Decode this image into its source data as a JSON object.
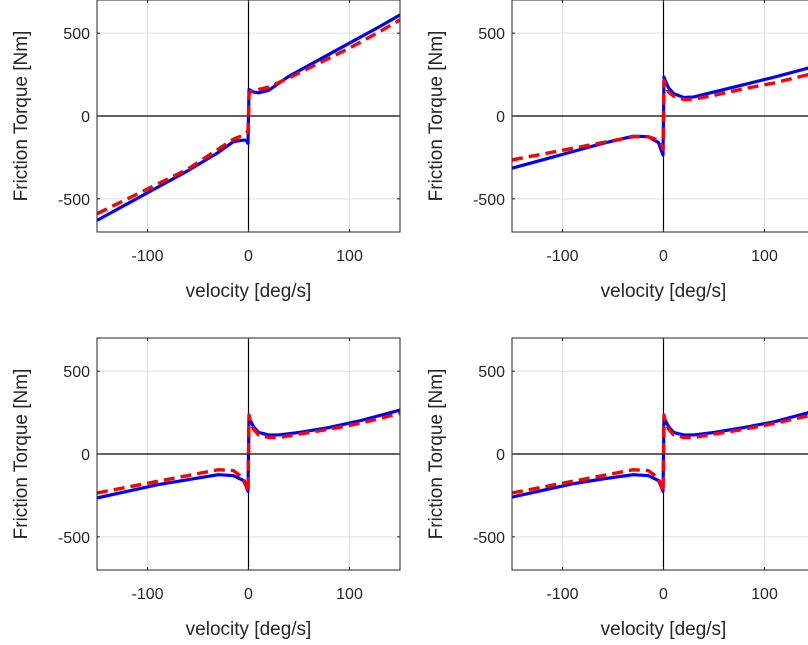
{
  "chart_data": [
    {
      "type": "line",
      "xlabel": "velocity [deg/s]",
      "ylabel": "Friction Torque [Nm]",
      "xlim": [
        -150,
        150
      ],
      "ylim": [
        -700,
        700
      ],
      "xticks": [
        -100,
        0,
        100
      ],
      "yticks": [
        -500,
        0,
        500
      ],
      "grid": true,
      "colors": {
        "blue": "#0000ff",
        "red": "#ff0000"
      },
      "series": [
        {
          "color": "blue",
          "style": "solid",
          "x": [
            -150,
            -120,
            -90,
            -60,
            -30,
            -15,
            -5,
            -2,
            -0.5,
            0,
            0.5,
            2,
            5,
            10,
            20,
            40,
            70,
            100,
            130,
            150
          ],
          "y": [
            -630,
            -530,
            -430,
            -330,
            -220,
            -155,
            -145,
            -148,
            -165,
            0,
            160,
            155,
            145,
            140,
            155,
            240,
            340,
            440,
            540,
            610
          ]
        },
        {
          "color": "red",
          "style": "dashed",
          "x": [
            -150,
            -120,
            -90,
            -60,
            -30,
            -15,
            -5,
            -2,
            -0.5,
            0,
            0.5,
            2,
            5,
            10,
            20,
            40,
            70,
            100,
            130,
            150
          ],
          "y": [
            -590,
            -500,
            -410,
            -320,
            -200,
            -140,
            -115,
            -100,
            -90,
            0,
            130,
            150,
            150,
            160,
            175,
            230,
            320,
            410,
            510,
            580
          ]
        }
      ]
    },
    {
      "type": "line",
      "xlabel": "velocity [deg/s]",
      "ylabel": "Friction Torque [Nm]",
      "xlim": [
        -150,
        150
      ],
      "ylim": [
        -700,
        700
      ],
      "xticks": [
        -100,
        0,
        100
      ],
      "yticks": [
        -500,
        0,
        500
      ],
      "grid": true,
      "series": [
        {
          "color": "blue",
          "style": "solid",
          "x": [
            -150,
            -120,
            -90,
            -60,
            -30,
            -15,
            -5,
            -2,
            -0.5,
            0,
            0.5,
            2,
            5,
            10,
            20,
            30,
            50,
            80,
            110,
            150
          ],
          "y": [
            -315,
            -265,
            -215,
            -165,
            -122,
            -125,
            -160,
            -210,
            -235,
            0,
            235,
            210,
            170,
            135,
            112,
            115,
            145,
            190,
            235,
            300
          ]
        },
        {
          "color": "red",
          "style": "dashed",
          "x": [
            -150,
            -120,
            -90,
            -60,
            -30,
            -15,
            -5,
            -2,
            -0.5,
            0,
            0.5,
            2,
            5,
            10,
            20,
            30,
            50,
            80,
            110,
            150
          ],
          "y": [
            -265,
            -230,
            -195,
            -160,
            -125,
            -125,
            -145,
            -175,
            -200,
            0,
            215,
            180,
            145,
            120,
            100,
            102,
            125,
            165,
            200,
            260
          ]
        }
      ]
    },
    {
      "type": "line",
      "xlabel": "velocity [deg/s]",
      "ylabel": "Friction Torque [Nm]",
      "xlim": [
        -150,
        150
      ],
      "ylim": [
        -700,
        700
      ],
      "xticks": [
        -100,
        0,
        100
      ],
      "yticks": [
        -500,
        0,
        500
      ],
      "grid": true,
      "series": [
        {
          "color": "blue",
          "style": "solid",
          "x": [
            -150,
            -120,
            -90,
            -60,
            -30,
            -15,
            -5,
            -2,
            -0.5,
            0,
            0.5,
            2,
            5,
            10,
            20,
            30,
            50,
            80,
            110,
            150
          ],
          "y": [
            -265,
            -225,
            -185,
            -155,
            -125,
            -130,
            -160,
            -200,
            -225,
            0,
            225,
            200,
            165,
            130,
            115,
            115,
            130,
            160,
            200,
            265
          ]
        },
        {
          "color": "red",
          "style": "dashed",
          "x": [
            -150,
            -120,
            -90,
            -60,
            -30,
            -15,
            -5,
            -2,
            -0.5,
            0,
            0.5,
            2,
            5,
            10,
            20,
            30,
            50,
            80,
            110,
            150
          ],
          "y": [
            -235,
            -200,
            -165,
            -130,
            -95,
            -100,
            -145,
            -200,
            -230,
            0,
            235,
            190,
            150,
            115,
            100,
            100,
            120,
            150,
            185,
            245
          ]
        }
      ]
    },
    {
      "type": "line",
      "xlabel": "velocity [deg/s]",
      "ylabel": "Friction Torque [Nm]",
      "xlim": [
        -150,
        150
      ],
      "ylim": [
        -700,
        700
      ],
      "xticks": [
        -100,
        0,
        100
      ],
      "yticks": [
        -500,
        0,
        500
      ],
      "grid": true,
      "series": [
        {
          "color": "blue",
          "style": "solid",
          "x": [
            -150,
            -120,
            -90,
            -60,
            -30,
            -15,
            -5,
            -2,
            -0.5,
            0,
            0.5,
            2,
            5,
            10,
            20,
            30,
            50,
            80,
            110,
            150
          ],
          "y": [
            -260,
            -220,
            -180,
            -150,
            -125,
            -130,
            -160,
            -200,
            -225,
            0,
            225,
            200,
            165,
            130,
            115,
            115,
            130,
            160,
            195,
            260
          ]
        },
        {
          "color": "red",
          "style": "dashed",
          "x": [
            -150,
            -120,
            -90,
            -60,
            -30,
            -15,
            -5,
            -2,
            -0.5,
            0,
            0.5,
            2,
            5,
            10,
            20,
            30,
            50,
            80,
            110,
            150
          ],
          "y": [
            -235,
            -200,
            -165,
            -130,
            -95,
            -100,
            -145,
            -200,
            -230,
            0,
            235,
            190,
            150,
            115,
            100,
            100,
            120,
            150,
            185,
            240
          ]
        }
      ]
    }
  ]
}
